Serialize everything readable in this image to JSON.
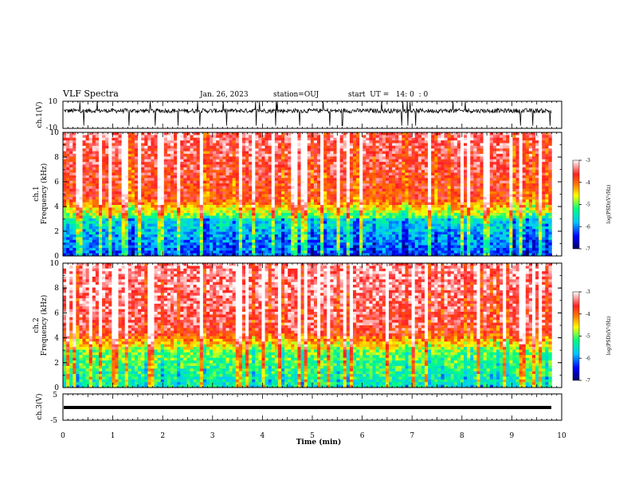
{
  "header": {
    "title": "VLF Spectra",
    "date": "Jan. 26, 2023",
    "station": "station=OUJ",
    "start": "start  UT =   14: 0  : 0"
  },
  "chart_data": {
    "type": "heatmap",
    "xlabel": "Time (min)",
    "xlim": [
      0,
      10
    ],
    "x_ticks": [
      "0",
      "1",
      "2",
      "3",
      "4",
      "5",
      "6",
      "7",
      "8",
      "9",
      "10"
    ],
    "panels": [
      {
        "id": "ch1_waveform",
        "type": "line",
        "ylabel": "ch.1(V)",
        "ylim": [
          -10,
          10
        ],
        "y_ticks": [
          "10",
          "-10"
        ],
        "data_end_min": 9.8,
        "description_level": "noisy waveform centred near 3 V"
      },
      {
        "id": "ch1_spectrogram",
        "type": "heatmap",
        "ylabel_line1": "ch.1",
        "ylabel_line2": "Frequency (kHz)",
        "ylim": [
          0,
          10
        ],
        "y_ticks": [
          "0",
          "2",
          "4",
          "6",
          "8",
          "10"
        ],
        "data_end_min": 9.8
      },
      {
        "id": "ch2_spectrogram",
        "type": "heatmap",
        "ylabel_line1": "ch.2",
        "ylabel_line2": "Frequency (kHz)",
        "ylim": [
          0,
          10
        ],
        "y_ticks": [
          "0",
          "2",
          "4",
          "6",
          "8",
          "10"
        ],
        "data_end_min": 9.8
      },
      {
        "id": "ch3_waveform",
        "type": "line",
        "ylabel": "ch.3(V)",
        "ylim": [
          -5,
          5
        ],
        "y_ticks": [
          "5",
          "-5"
        ],
        "constant_value": 0,
        "data_end_min": 9.8
      }
    ],
    "colorbar": {
      "label": "log(PSD)(V²/Hz)",
      "range": [
        -7,
        -3
      ],
      "ticks": [
        "-3",
        "-4",
        "-5",
        "-6",
        "-7"
      ],
      "colormap": [
        "#000066",
        "#0000ff",
        "#00c8ff",
        "#00ff80",
        "#ffff00",
        "#ff8000",
        "#ff2020",
        "#ffffff"
      ]
    }
  }
}
